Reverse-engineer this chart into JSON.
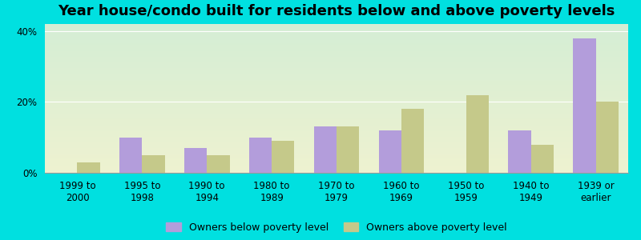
{
  "title": "Year house/condo built for residents below and above poverty levels",
  "categories": [
    "1999 to\n2000",
    "1995 to\n1998",
    "1990 to\n1994",
    "1980 to\n1989",
    "1970 to\n1979",
    "1960 to\n1969",
    "1950 to\n1959",
    "1940 to\n1949",
    "1939 or\nearlier"
  ],
  "below_poverty": [
    0.0,
    10.0,
    7.0,
    10.0,
    13.0,
    12.0,
    0.0,
    12.0,
    38.0
  ],
  "above_poverty": [
    3.0,
    5.0,
    5.0,
    9.0,
    13.0,
    18.0,
    22.0,
    8.0,
    20.0
  ],
  "bar_color_below": "#b39ddb",
  "bar_color_above": "#c5c98a",
  "background_outer": "#00e0e0",
  "background_inner_top": "#d4edd4",
  "background_inner_bottom": "#eef2d0",
  "ylim": [
    0,
    42
  ],
  "yticks": [
    0,
    20,
    40
  ],
  "ytick_labels": [
    "0%",
    "20%",
    "40%"
  ],
  "legend_below": "Owners below poverty level",
  "legend_above": "Owners above poverty level",
  "title_fontsize": 13,
  "tick_fontsize": 8.5,
  "legend_fontsize": 9
}
